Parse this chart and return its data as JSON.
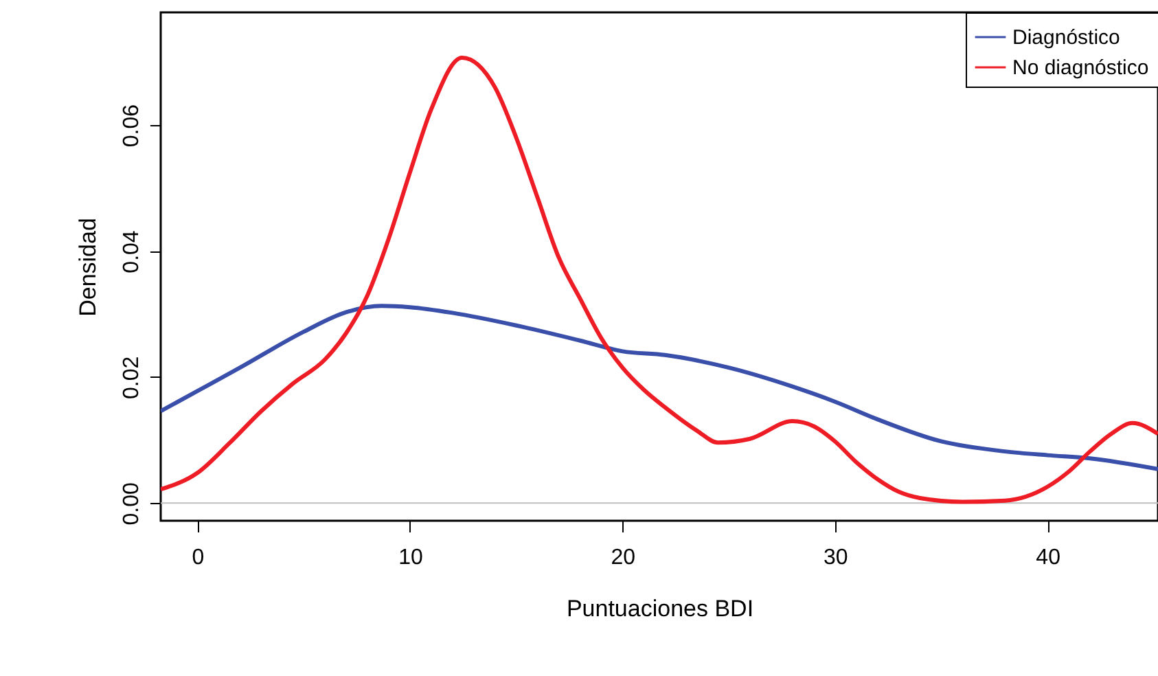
{
  "chart_data": {
    "type": "line",
    "xlabel": "Puntuaciones BDI",
    "ylabel": "Densidad",
    "xlim": [
      -1.73,
      45.2
    ],
    "ylim": [
      -0.0028,
      0.0779
    ],
    "xticks": [
      0,
      10,
      20,
      30,
      40
    ],
    "yticks": [
      {
        "value": 0,
        "label": "0.00"
      },
      {
        "value": 0.02,
        "label": "0.02"
      },
      {
        "value": 0.04,
        "label": "0.04"
      },
      {
        "value": 0.06,
        "label": "0.06"
      }
    ],
    "grid": false,
    "legend": "top right",
    "ref_lines": [
      {
        "axis": "y",
        "value": 0,
        "label": null,
        "color": "#bebebe"
      }
    ],
    "series": [
      {
        "name": "Diagnóstico",
        "color": "#3a4faa",
        "x": [
          -1.73,
          0,
          2,
          5,
          7,
          8.65,
          10,
          12,
          15,
          18,
          20,
          22,
          25,
          28,
          30,
          32,
          35,
          38,
          40,
          42,
          45.2
        ],
        "values": [
          0.0146,
          0.0178,
          0.0215,
          0.0272,
          0.0303,
          0.0313,
          0.0311,
          0.0302,
          0.0282,
          0.0258,
          0.0241,
          0.0235,
          0.0215,
          0.0185,
          0.0161,
          0.0133,
          0.0098,
          0.0082,
          0.0076,
          0.0071,
          0.0054
        ]
      },
      {
        "name": "No diagnóstico",
        "color": "#ee1c25",
        "x": [
          -1.73,
          0,
          1.5,
          3,
          4.5,
          6,
          7,
          8,
          9,
          10,
          11,
          12.45,
          14,
          15,
          16,
          17,
          18,
          19,
          20,
          21,
          22,
          23.5,
          24.5,
          26,
          28,
          29,
          30,
          31,
          32,
          33,
          34,
          36,
          38,
          40,
          41,
          42,
          43,
          44,
          45.2
        ],
        "values": [
          0.0022,
          0.0048,
          0.0095,
          0.0146,
          0.019,
          0.0228,
          0.027,
          0.033,
          0.042,
          0.0525,
          0.0625,
          0.0707,
          0.066,
          0.058,
          0.0485,
          0.039,
          0.0325,
          0.0262,
          0.0215,
          0.018,
          0.0152,
          0.0115,
          0.0096,
          0.0102,
          0.013,
          0.0122,
          0.0098,
          0.0065,
          0.0038,
          0.0018,
          0.0008,
          0.0002,
          0.0004,
          0.0026,
          0.005,
          0.0082,
          0.011,
          0.0127,
          0.011
        ]
      }
    ]
  }
}
